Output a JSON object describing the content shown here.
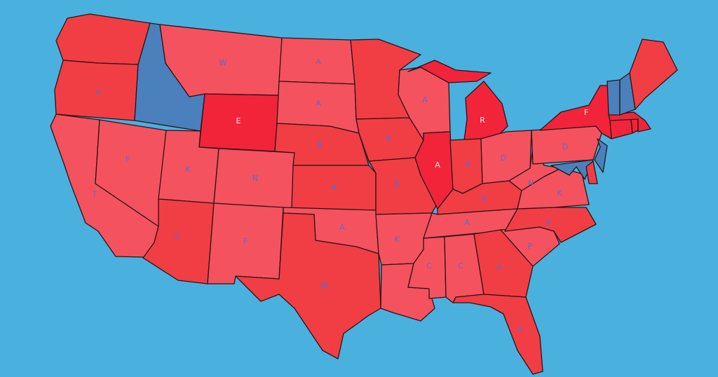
{
  "colors": {
    "ocean": "#4ab0dd",
    "red": "#f4525e",
    "dark_red": "#f03e44",
    "bright_red": "#f2243a",
    "blue": "#4a80bb",
    "label_on_red": "#5a6ad0",
    "label_on_bright": "#f5e8ea",
    "border": "#2a1418"
  },
  "states": [
    {
      "id": "wa",
      "fill": "dark_red",
      "label": ""
    },
    {
      "id": "or",
      "fill": "dark_red",
      "label": "A"
    },
    {
      "id": "ca",
      "fill": "red",
      "label": "T"
    },
    {
      "id": "id",
      "fill": "blue",
      "label": ""
    },
    {
      "id": "nv",
      "fill": "red",
      "label": "F"
    },
    {
      "id": "mt",
      "fill": "red",
      "label": "W"
    },
    {
      "id": "wy",
      "fill": "bright_red",
      "label": "E"
    },
    {
      "id": "ut",
      "fill": "red",
      "label": "K"
    },
    {
      "id": "co",
      "fill": "red",
      "label": "N"
    },
    {
      "id": "az",
      "fill": "dark_red",
      "label": "E"
    },
    {
      "id": "nm",
      "fill": "red",
      "label": "F"
    },
    {
      "id": "nd",
      "fill": "red",
      "label": "A"
    },
    {
      "id": "sd",
      "fill": "red",
      "label": "A"
    },
    {
      "id": "ne",
      "fill": "dark_red",
      "label": "B"
    },
    {
      "id": "ks",
      "fill": "dark_red",
      "label": "B"
    },
    {
      "id": "ok",
      "fill": "red",
      "label": "A"
    },
    {
      "id": "tx",
      "fill": "dark_red",
      "label": "W"
    },
    {
      "id": "mn",
      "fill": "dark_red",
      "label": ""
    },
    {
      "id": "ia",
      "fill": "dark_red",
      "label": "B"
    },
    {
      "id": "mo",
      "fill": "dark_red",
      "label": "B"
    },
    {
      "id": "ar",
      "fill": "red",
      "label": "K"
    },
    {
      "id": "la",
      "fill": "red",
      "label": ""
    },
    {
      "id": "wi",
      "fill": "red",
      "label": "A"
    },
    {
      "id": "il",
      "fill": "bright_red",
      "label": "A"
    },
    {
      "id": "mi",
      "fill": "bright_red",
      "label": "R"
    },
    {
      "id": "mi_up",
      "fill": "bright_red",
      "label": ""
    },
    {
      "id": "in",
      "fill": "dark_red",
      "label": "A"
    },
    {
      "id": "oh",
      "fill": "red",
      "label": "D"
    },
    {
      "id": "ky",
      "fill": "dark_red",
      "label": "A"
    },
    {
      "id": "tn",
      "fill": "red",
      "label": "A"
    },
    {
      "id": "ms",
      "fill": "red",
      "label": "C"
    },
    {
      "id": "al",
      "fill": "red",
      "label": "C"
    },
    {
      "id": "ga",
      "fill": "dark_red",
      "label": "A"
    },
    {
      "id": "fl",
      "fill": "dark_red",
      "label": "A"
    },
    {
      "id": "sc",
      "fill": "red",
      "label": "P"
    },
    {
      "id": "nc",
      "fill": "dark_red",
      "label": "R"
    },
    {
      "id": "va",
      "fill": "red",
      "label": "K"
    },
    {
      "id": "wv",
      "fill": "red",
      "label": "N"
    },
    {
      "id": "pa",
      "fill": "red",
      "label": "D"
    },
    {
      "id": "ny",
      "fill": "bright_red",
      "label": "F"
    },
    {
      "id": "md",
      "fill": "blue",
      "label": ""
    },
    {
      "id": "de",
      "fill": "dark_red",
      "label": ""
    },
    {
      "id": "nj",
      "fill": "blue",
      "label": ""
    },
    {
      "id": "ct",
      "fill": "bright_red",
      "label": ""
    },
    {
      "id": "ri",
      "fill": "bright_red",
      "label": ""
    },
    {
      "id": "ma",
      "fill": "bright_red",
      "label": ""
    },
    {
      "id": "vt",
      "fill": "blue",
      "label": ""
    },
    {
      "id": "nh",
      "fill": "blue",
      "label": ""
    },
    {
      "id": "me",
      "fill": "dark_red",
      "label": ""
    }
  ]
}
